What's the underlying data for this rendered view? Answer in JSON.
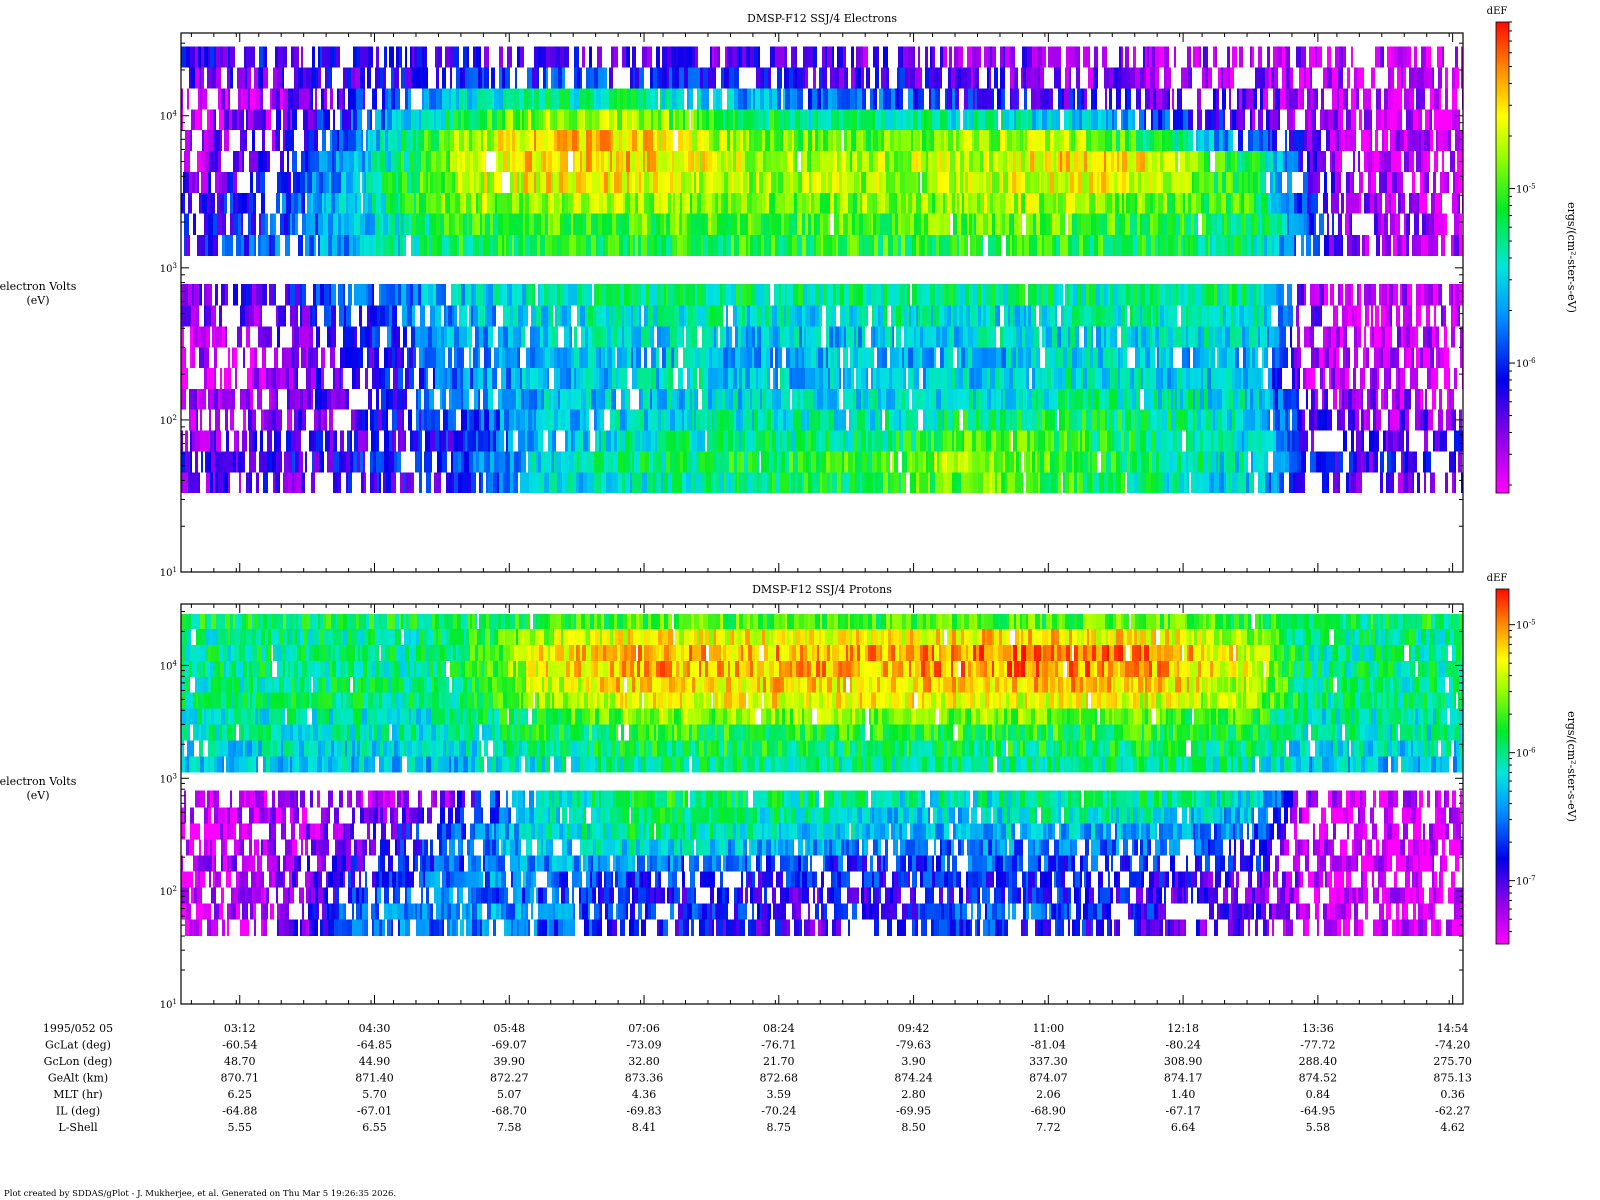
{
  "footer": "Plot created by SDDAS/gPlot - J. Mukherjee, et al.  Generated on Thu Mar 5 19:26:35 2026.",
  "chart_data": [
    {
      "type": "heatmap",
      "title": "DMSP-F12 SSJ/4 Electrons",
      "ylabel": [
        "electron Volts",
        "(eV)"
      ],
      "yscale": "log",
      "ylim": [
        10,
        35000
      ],
      "yticks": [
        {
          "label": "10",
          "exp": "1"
        },
        {
          "label": "10",
          "exp": "2"
        },
        {
          "label": "10",
          "exp": "3"
        },
        {
          "label": "10",
          "exp": "4"
        }
      ],
      "colorbar": {
        "title": "dEF",
        "label": "ergs/(cm²-ster-s-eV)",
        "scale": "log",
        "range": [
          1.8e-07,
          9e-05
        ],
        "ticks": [
          {
            "label": "10",
            "exp": "-6",
            "value": 1e-06
          },
          {
            "label": "10",
            "exp": "-5",
            "value": 1e-05
          }
        ]
      },
      "energy_bands_eV": [
        [
          33,
          45
        ],
        [
          45,
          62
        ],
        [
          62,
          85
        ],
        [
          85,
          117
        ],
        [
          117,
          160
        ],
        [
          160,
          220
        ],
        [
          220,
          300
        ],
        [
          300,
          412
        ],
        [
          412,
          565
        ],
        [
          565,
          780
        ],
        [
          1200,
          1650
        ],
        [
          1650,
          2270
        ],
        [
          2270,
          3110
        ],
        [
          3110,
          4270
        ],
        [
          4270,
          5860
        ],
        [
          5860,
          8040
        ],
        [
          8040,
          11030
        ],
        [
          11030,
          15140
        ],
        [
          15140,
          20780
        ],
        [
          20780,
          28500
        ]
      ],
      "time_nodes": [
        0.0,
        0.07,
        0.14,
        0.21,
        0.28,
        0.35,
        0.42,
        0.49,
        0.56,
        0.63,
        0.7,
        0.77,
        0.84,
        0.875,
        0.91,
        0.95,
        1.0
      ],
      "log_def_profile": [
        [
          -6.3,
          -6.3,
          -6.2,
          -6.1,
          -5.6,
          -5.4,
          -5.3,
          -5.2,
          -5.1,
          -4.9,
          -5.1,
          -5.4,
          -5.6,
          -6.2,
          -6.3,
          -6.3,
          -6.3
        ],
        [
          -6.3,
          -6.2,
          -6.1,
          -6.0,
          -5.5,
          -5.3,
          -5.2,
          -5.1,
          -5.0,
          -4.8,
          -5.0,
          -5.3,
          -5.5,
          -6.1,
          -6.2,
          -6.2,
          -6.2
        ],
        [
          -6.4,
          -6.3,
          -6.2,
          -6.1,
          -5.6,
          -5.4,
          -5.3,
          -5.3,
          -5.2,
          -4.9,
          -5.1,
          -5.3,
          -5.5,
          -6.2,
          -6.3,
          -6.3,
          -6.3
        ],
        [
          -6.5,
          -6.4,
          -6.2,
          -6.0,
          -5.6,
          -5.5,
          -5.4,
          -5.4,
          -5.4,
          -5.2,
          -5.2,
          -5.3,
          -5.5,
          -6.3,
          -6.4,
          -6.4,
          -6.4
        ],
        [
          -6.6,
          -6.4,
          -6.2,
          -5.8,
          -5.6,
          -5.6,
          -5.5,
          -5.5,
          -5.5,
          -5.4,
          -5.3,
          -5.4,
          -5.5,
          -6.4,
          -6.5,
          -6.5,
          -6.5
        ],
        [
          -6.6,
          -6.5,
          -6.2,
          -5.8,
          -5.6,
          -5.5,
          -5.5,
          -5.6,
          -5.6,
          -5.5,
          -5.4,
          -5.5,
          -5.6,
          -6.5,
          -6.6,
          -6.6,
          -6.6
        ],
        [
          -6.6,
          -6.5,
          -6.2,
          -5.8,
          -5.6,
          -5.6,
          -5.6,
          -5.6,
          -5.6,
          -5.6,
          -5.5,
          -5.6,
          -5.6,
          -6.5,
          -6.6,
          -6.6,
          -6.6
        ],
        [
          -6.6,
          -6.4,
          -6.1,
          -5.7,
          -5.5,
          -5.5,
          -5.5,
          -5.6,
          -5.5,
          -5.5,
          -5.5,
          -5.5,
          -5.5,
          -6.5,
          -6.6,
          -6.6,
          -6.6
        ],
        [
          -6.5,
          -6.3,
          -6.0,
          -5.7,
          -5.5,
          -5.4,
          -5.4,
          -5.5,
          -5.4,
          -5.5,
          -5.4,
          -5.4,
          -5.4,
          -6.4,
          -6.6,
          -6.6,
          -6.6
        ],
        [
          -6.4,
          -6.2,
          -5.9,
          -5.6,
          -5.4,
          -5.3,
          -5.3,
          -5.3,
          -5.3,
          -5.3,
          -5.3,
          -5.3,
          -5.3,
          -6.4,
          -6.6,
          -6.6,
          -6.6
        ],
        [
          -6.1,
          -5.9,
          -5.6,
          -5.2,
          -5.1,
          -5.1,
          -5.1,
          -5.1,
          -5.1,
          -5.1,
          -5.1,
          -5.2,
          -5.3,
          -5.9,
          -6.4,
          -6.5,
          -6.5
        ],
        [
          -6.2,
          -6.0,
          -5.6,
          -5.1,
          -5.0,
          -5.0,
          -5.0,
          -5.0,
          -5.0,
          -5.0,
          -5.0,
          -5.1,
          -5.2,
          -5.9,
          -6.4,
          -6.5,
          -6.5
        ],
        [
          -6.3,
          -6.0,
          -5.5,
          -4.9,
          -4.8,
          -4.8,
          -4.9,
          -4.9,
          -4.9,
          -4.8,
          -4.8,
          -5.0,
          -5.1,
          -6.0,
          -6.5,
          -6.6,
          -6.6
        ],
        [
          -6.4,
          -6.1,
          -5.5,
          -4.8,
          -4.6,
          -4.6,
          -4.8,
          -4.8,
          -4.8,
          -4.7,
          -4.6,
          -4.8,
          -5.2,
          -6.1,
          -6.5,
          -6.6,
          -6.6
        ],
        [
          -6.5,
          -6.2,
          -5.6,
          -4.8,
          -4.5,
          -4.5,
          -4.7,
          -4.8,
          -4.8,
          -4.7,
          -4.5,
          -4.7,
          -5.3,
          -6.2,
          -6.6,
          -6.6,
          -6.6
        ],
        [
          -6.5,
          -6.3,
          -5.7,
          -4.9,
          -4.5,
          -4.5,
          -4.8,
          -4.9,
          -4.9,
          -4.8,
          -4.8,
          -5.3,
          -6.0,
          -6.3,
          -6.6,
          -6.6,
          -6.6
        ],
        [
          -6.6,
          -6.4,
          -5.9,
          -5.2,
          -4.8,
          -4.8,
          -5.1,
          -5.3,
          -5.3,
          -5.4,
          -5.5,
          -6.0,
          -6.3,
          -6.4,
          -6.6,
          -6.6,
          -6.6
        ],
        [
          -6.6,
          -6.5,
          -6.1,
          -5.6,
          -5.3,
          -5.3,
          -5.6,
          -5.8,
          -5.9,
          -6.1,
          -6.2,
          -6.3,
          -6.4,
          -6.5,
          -6.6,
          -6.6,
          -6.6
        ],
        [
          -6.4,
          -6.3,
          -6.2,
          -6.1,
          -6.0,
          -6.0,
          -6.1,
          -6.2,
          -6.2,
          -6.3,
          -6.4,
          -6.4,
          -6.5,
          -6.5,
          -6.6,
          -6.6,
          -6.6
        ],
        [
          -6.2,
          -6.2,
          -6.2,
          -6.2,
          -6.2,
          -6.2,
          -6.3,
          -6.3,
          -6.4,
          -6.4,
          -6.4,
          -6.5,
          -6.5,
          -6.5,
          -6.6,
          -6.6,
          -6.6
        ]
      ]
    },
    {
      "type": "heatmap",
      "title": "DMSP-F12 SSJ/4 Protons",
      "ylabel": [
        "electron Volts",
        "(eV)"
      ],
      "yscale": "log",
      "ylim": [
        10,
        35000
      ],
      "yticks": [
        {
          "label": "10",
          "exp": "1"
        },
        {
          "label": "10",
          "exp": "2"
        },
        {
          "label": "10",
          "exp": "3"
        },
        {
          "label": "10",
          "exp": "4"
        }
      ],
      "colorbar": {
        "title": "dEF",
        "label": "ergs/(cm²-ster-s-eV)",
        "scale": "log",
        "range": [
          3.2e-08,
          1.9e-05
        ],
        "ticks": [
          {
            "label": "10",
            "exp": "-7",
            "value": 1e-07
          },
          {
            "label": "10",
            "exp": "-6",
            "value": 1e-06
          },
          {
            "label": "10",
            "exp": "-5",
            "value": 1e-05
          }
        ]
      },
      "energy_bands_eV": [
        [
          40,
          56
        ],
        [
          56,
          78
        ],
        [
          78,
          108
        ],
        [
          108,
          150
        ],
        [
          150,
          207
        ],
        [
          207,
          287
        ],
        [
          287,
          397
        ],
        [
          397,
          550
        ],
        [
          550,
          780
        ],
        [
          1130,
          1560
        ],
        [
          1560,
          2160
        ],
        [
          2160,
          2990
        ],
        [
          2990,
          4140
        ],
        [
          4140,
          5730
        ],
        [
          5730,
          7930
        ],
        [
          7930,
          10980
        ],
        [
          10980,
          15200
        ],
        [
          15200,
          21050
        ],
        [
          21050,
          28500
        ]
      ],
      "time_nodes": [
        0.0,
        0.07,
        0.14,
        0.21,
        0.28,
        0.35,
        0.42,
        0.49,
        0.56,
        0.63,
        0.7,
        0.77,
        0.84,
        0.875,
        0.91,
        0.95,
        1.0
      ],
      "log_def_profile": [
        [
          -7.4,
          -7.3,
          -6.6,
          -6.5,
          -6.6,
          -6.8,
          -6.9,
          -7.0,
          -6.9,
          -6.7,
          -6.8,
          -7.0,
          -7.1,
          -7.3,
          -7.4,
          -7.4,
          -7.4
        ],
        [
          -7.4,
          -7.3,
          -6.5,
          -6.4,
          -6.5,
          -6.7,
          -6.8,
          -6.9,
          -6.8,
          -6.6,
          -6.7,
          -6.9,
          -7.0,
          -7.3,
          -7.4,
          -7.4,
          -7.4
        ],
        [
          -7.4,
          -7.3,
          -6.7,
          -6.5,
          -6.6,
          -6.8,
          -6.9,
          -7.0,
          -6.9,
          -6.8,
          -6.8,
          -7.0,
          -7.1,
          -7.3,
          -7.4,
          -7.4,
          -7.4
        ],
        [
          -7.4,
          -7.2,
          -6.8,
          -6.5,
          -6.5,
          -6.7,
          -6.8,
          -6.8,
          -6.8,
          -6.7,
          -6.8,
          -6.9,
          -7.0,
          -7.3,
          -7.4,
          -7.4,
          -7.4
        ],
        [
          -7.3,
          -7.2,
          -6.9,
          -6.6,
          -6.4,
          -6.5,
          -6.6,
          -6.7,
          -6.8,
          -6.6,
          -6.7,
          -6.8,
          -6.9,
          -7.3,
          -7.4,
          -7.4,
          -7.4
        ],
        [
          -7.4,
          -7.3,
          -7.0,
          -6.6,
          -6.3,
          -6.2,
          -6.3,
          -6.4,
          -6.6,
          -6.5,
          -6.5,
          -6.6,
          -6.8,
          -7.3,
          -7.4,
          -7.4,
          -7.4
        ],
        [
          -7.4,
          -7.3,
          -7.1,
          -6.7,
          -6.2,
          -6.0,
          -6.1,
          -6.2,
          -6.4,
          -6.3,
          -6.3,
          -6.4,
          -6.6,
          -7.3,
          -7.4,
          -7.4,
          -7.4
        ],
        [
          -7.4,
          -7.3,
          -7.2,
          -6.9,
          -6.2,
          -5.9,
          -6.0,
          -6.1,
          -6.3,
          -6.2,
          -6.1,
          -6.2,
          -6.4,
          -7.3,
          -7.4,
          -7.4,
          -7.4
        ],
        [
          -7.4,
          -7.3,
          -7.3,
          -7.1,
          -6.2,
          -5.9,
          -5.9,
          -6.0,
          -6.1,
          -6.1,
          -6.0,
          -6.0,
          -6.2,
          -7.2,
          -7.4,
          -7.4,
          -7.4
        ],
        [
          -6.3,
          -6.3,
          -6.3,
          -6.3,
          -6.1,
          -6.0,
          -6.0,
          -6.0,
          -6.0,
          -6.0,
          -6.0,
          -6.0,
          -6.1,
          -6.3,
          -6.3,
          -6.3,
          -6.3
        ],
        [
          -6.2,
          -6.2,
          -6.2,
          -6.2,
          -6.0,
          -5.9,
          -5.9,
          -5.9,
          -5.9,
          -5.9,
          -5.9,
          -5.9,
          -6.0,
          -6.2,
          -6.2,
          -6.2,
          -6.2
        ],
        [
          -6.1,
          -6.1,
          -6.1,
          -6.1,
          -5.9,
          -5.8,
          -5.8,
          -5.8,
          -5.8,
          -5.8,
          -5.8,
          -5.8,
          -5.9,
          -6.1,
          -6.1,
          -6.1,
          -6.1
        ],
        [
          -6.1,
          -6.1,
          -6.1,
          -6.1,
          -5.8,
          -5.6,
          -5.6,
          -5.6,
          -5.6,
          -5.6,
          -5.6,
          -5.7,
          -5.8,
          -6.1,
          -6.1,
          -6.1,
          -6.1
        ],
        [
          -6.0,
          -6.0,
          -6.0,
          -6.0,
          -5.5,
          -5.3,
          -5.3,
          -5.3,
          -5.3,
          -5.3,
          -5.3,
          -5.4,
          -5.6,
          -6.0,
          -6.0,
          -6.0,
          -6.0
        ],
        [
          -6.0,
          -6.0,
          -6.0,
          -6.0,
          -5.4,
          -5.2,
          -5.2,
          -5.2,
          -5.2,
          -5.2,
          -5.1,
          -5.2,
          -5.5,
          -6.0,
          -6.0,
          -6.0,
          -6.0
        ],
        [
          -6.0,
          -6.0,
          -6.0,
          -6.0,
          -5.3,
          -5.1,
          -5.1,
          -5.1,
          -5.1,
          -5.0,
          -5.0,
          -5.1,
          -5.4,
          -6.0,
          -6.0,
          -6.0,
          -6.0
        ],
        [
          -6.0,
          -6.0,
          -6.0,
          -6.0,
          -5.3,
          -5.1,
          -5.1,
          -5.1,
          -5.1,
          -5.0,
          -4.9,
          -5.1,
          -5.4,
          -6.0,
          -6.0,
          -6.0,
          -6.0
        ],
        [
          -6.0,
          -6.0,
          -6.0,
          -6.0,
          -5.5,
          -5.3,
          -5.3,
          -5.3,
          -5.3,
          -5.2,
          -5.2,
          -5.3,
          -5.6,
          -6.0,
          -6.0,
          -6.0,
          -6.0
        ],
        [
          -5.9,
          -5.9,
          -5.9,
          -5.9,
          -5.8,
          -5.7,
          -5.7,
          -5.7,
          -5.7,
          -5.7,
          -5.7,
          -5.7,
          -5.8,
          -5.9,
          -5.9,
          -5.9,
          -5.9
        ]
      ]
    }
  ],
  "time_axis": {
    "tick_labels": [
      "03:12",
      "04:30",
      "05:48",
      "07:06",
      "08:24",
      "09:42",
      "11:00",
      "12:18",
      "13:36",
      "14:54"
    ],
    "tick_minutes": [
      192,
      270,
      348,
      426,
      504,
      582,
      660,
      738,
      816,
      894
    ],
    "range_minutes": [
      158,
      900
    ]
  },
  "ancillary": {
    "date_label": "1995/052 05",
    "rows": [
      {
        "label": "GcLat (deg)",
        "values": [
          "-60.54",
          "-64.85",
          "-69.07",
          "-73.09",
          "-76.71",
          "-79.63",
          "-81.04",
          "-80.24",
          "-77.72",
          "-74.20"
        ]
      },
      {
        "label": "GcLon (deg)",
        "values": [
          "48.70",
          "44.90",
          "39.90",
          "32.80",
          "21.70",
          "3.90",
          "337.30",
          "308.90",
          "288.40",
          "275.70"
        ]
      },
      {
        "label": "GeAlt (km)",
        "values": [
          "870.71",
          "871.40",
          "872.27",
          "873.36",
          "872.68",
          "874.24",
          "874.07",
          "874.17",
          "874.52",
          "875.13"
        ]
      },
      {
        "label": "MLT (hr)",
        "values": [
          "6.25",
          "5.70",
          "5.07",
          "4.36",
          "3.59",
          "2.80",
          "2.06",
          "1.40",
          "0.84",
          "0.36"
        ]
      },
      {
        "label": "IL (deg)",
        "values": [
          "-64.88",
          "-67.01",
          "-68.70",
          "-69.83",
          "-70.24",
          "-69.95",
          "-68.90",
          "-67.17",
          "-64.95",
          "-62.27"
        ]
      },
      {
        "label": "L-Shell",
        "values": [
          "5.55",
          "6.55",
          "7.58",
          "8.41",
          "8.75",
          "8.50",
          "7.72",
          "6.64",
          "5.58",
          "4.62"
        ]
      }
    ]
  }
}
